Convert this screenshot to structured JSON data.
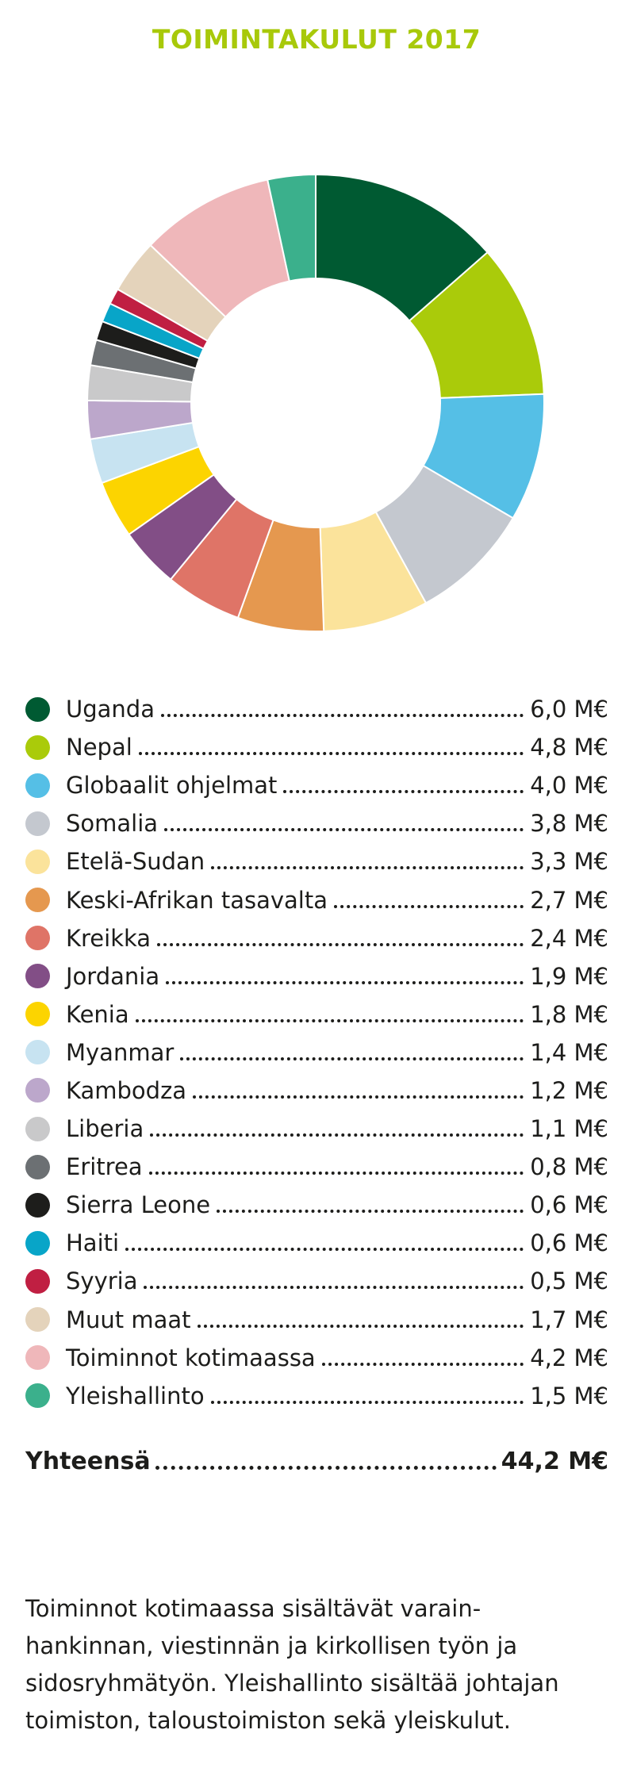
{
  "title": "TOIMINTAKULUT 2017",
  "chart_data": {
    "type": "pie",
    "title": "TOIMINTAKULUT 2017",
    "unit": "M€",
    "slices": [
      {
        "label": "Uganda",
        "value": 6.0,
        "display": "6,0 M€",
        "color": "#005a32"
      },
      {
        "label": "Nepal",
        "value": 4.8,
        "display": "4,8 M€",
        "color": "#aacb0a"
      },
      {
        "label": "Globaalit ohjelmat",
        "value": 4.0,
        "display": "4,0 M€",
        "color": "#55bfe6"
      },
      {
        "label": "Somalia",
        "value": 3.8,
        "display": "3,8 M€",
        "color": "#c4c8cf"
      },
      {
        "label": "Etelä-Sudan",
        "value": 3.3,
        "display": "3,3 M€",
        "color": "#fbe39b"
      },
      {
        "label": "Keski-Afrikan tasavalta",
        "value": 2.7,
        "display": "2,7 M€",
        "color": "#e5984f"
      },
      {
        "label": "Kreikka",
        "value": 2.4,
        "display": "2,4 M€",
        "color": "#df7467"
      },
      {
        "label": "Jordania",
        "value": 1.9,
        "display": "1,9 M€",
        "color": "#824e86"
      },
      {
        "label": "Kenia",
        "value": 1.8,
        "display": "1,8 M€",
        "color": "#fcd400"
      },
      {
        "label": "Myanmar",
        "value": 1.4,
        "display": "1,4 M€",
        "color": "#c7e3f1"
      },
      {
        "label": "Kambodza",
        "value": 1.2,
        "display": "1,2 M€",
        "color": "#bca7cb"
      },
      {
        "label": "Liberia",
        "value": 1.1,
        "display": "1,1 M€",
        "color": "#c9c9ca"
      },
      {
        "label": "Eritrea",
        "value": 0.8,
        "display": "0,8 M€",
        "color": "#6c7073"
      },
      {
        "label": "Sierra Leone",
        "value": 0.6,
        "display": "0,6 M€",
        "color": "#1d1d1b"
      },
      {
        "label": "Haiti",
        "value": 0.6,
        "display": "0,6 M€",
        "color": "#08a5c8"
      },
      {
        "label": "Syyria",
        "value": 0.5,
        "display": "0,5 M€",
        "color": "#c01f42"
      },
      {
        "label": "Muut maat",
        "value": 1.7,
        "display": "1,7 M€",
        "color": "#e4d3bb"
      },
      {
        "label": "Toiminnot kotimaassa",
        "value": 4.2,
        "display": "4,2 M€",
        "color": "#efb7ba"
      },
      {
        "label": "Yleishallinto",
        "value": 1.5,
        "display": "1,5 M€",
        "color": "#3bb08c"
      }
    ]
  },
  "total": {
    "label": "Yhteensä",
    "value": "44,2 M€"
  },
  "footnote": [
    "Toiminnot kotimaassa sisältävät varain-",
    "hankinnan, viestinnän ja kirkollisen työn ja",
    "sidosryhmätyön. Yleishallinto sisältää johtajan",
    "toimiston, taloustoimiston sekä yleiskulut."
  ]
}
